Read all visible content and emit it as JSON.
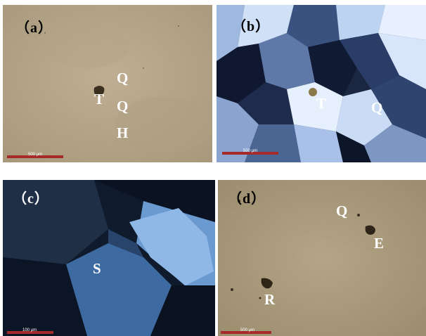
{
  "panels": {
    "a": {
      "label": "（a）",
      "scale": "500 μm",
      "minerals": {
        "m1": "T",
        "m2": "Q",
        "m3": "Q",
        "m4": "H"
      }
    },
    "b": {
      "label": "（b）",
      "scale": "500 μm",
      "minerals": {
        "m1": "T",
        "m2": "Q"
      }
    },
    "c": {
      "label": "（c）",
      "scale": "100 μm",
      "minerals": {
        "m1": "S"
      }
    },
    "d": {
      "label": "（d）",
      "scale": "500 μm",
      "minerals": {
        "m1": "Q",
        "m2": "E",
        "m3": "R"
      }
    }
  }
}
